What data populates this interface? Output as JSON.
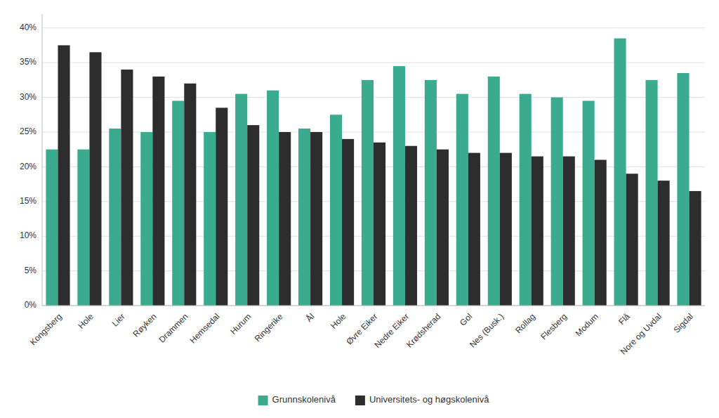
{
  "chart_data": {
    "type": "bar",
    "categories": [
      "Kongsberg",
      "Hole",
      "Lier",
      "Røyken",
      "Drammen",
      "Hemsedal",
      "Hurum",
      "Ringerike",
      "Ål",
      "Hole",
      "Øvre Eiker",
      "Nedre Eiker",
      "Krødsherad",
      "Gol",
      "Nes (Busk.)",
      "Rollag",
      "Flesberg",
      "Modum",
      "Flå",
      "Nore og Uvdal",
      "Sigdal"
    ],
    "series": [
      {
        "name": "Grunnskolenivå",
        "color": "#3aab8e",
        "values": [
          22.5,
          22.5,
          25.5,
          25.0,
          29.5,
          25.0,
          30.5,
          31.0,
          25.5,
          27.5,
          32.5,
          34.5,
          32.5,
          30.5,
          33.0,
          30.5,
          30.0,
          29.5,
          38.5,
          32.5,
          33.5
        ]
      },
      {
        "name": "Universitets- og høgskolenivå",
        "color": "#2d2d2d",
        "values": [
          37.5,
          36.5,
          34.0,
          33.0,
          32.0,
          28.5,
          26.0,
          25.0,
          25.0,
          24.0,
          23.5,
          23.0,
          22.5,
          22.0,
          22.0,
          21.5,
          21.5,
          21.0,
          19.0,
          18.0,
          16.5
        ]
      }
    ],
    "ylim": [
      0,
      42
    ],
    "yticks": [
      {
        "value": 0,
        "label": "0%"
      },
      {
        "value": 5,
        "label": "5%"
      },
      {
        "value": 10,
        "label": "10%"
      },
      {
        "value": 15,
        "label": "15%"
      },
      {
        "value": 20,
        "label": "20%"
      },
      {
        "value": 25,
        "label": "25%"
      },
      {
        "value": 30,
        "label": "30%"
      },
      {
        "value": 35,
        "label": "35%"
      },
      {
        "value": 40,
        "label": "40%"
      }
    ],
    "grid": true,
    "legend": "bottom"
  }
}
